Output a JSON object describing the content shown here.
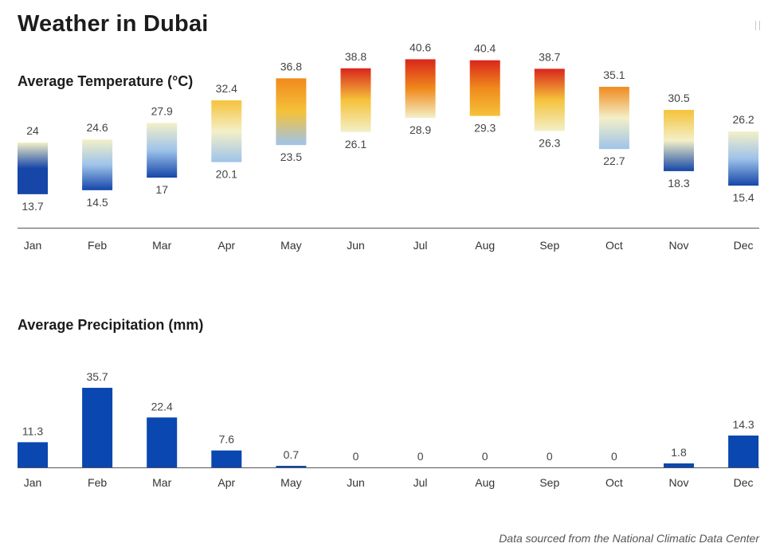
{
  "page": {
    "title": "Weather in Dubai",
    "source_note": "Data sourced from the National Climatic Data Center"
  },
  "chart_data": [
    {
      "type": "range-bar",
      "title": "Average Temperature (°C)",
      "categories": [
        "Jan",
        "Feb",
        "Mar",
        "Apr",
        "May",
        "Jun",
        "Jul",
        "Aug",
        "Sep",
        "Oct",
        "Nov",
        "Dec"
      ],
      "series": [
        {
          "name": "",
          "values": [
            24,
            24.6,
            27.9,
            32.4,
            36.8,
            38.8,
            40.6,
            40.4,
            38.7,
            35.1,
            30.5,
            26.2
          ]
        },
        {
          "name": "",
          "values": [
            13.7,
            14.5,
            17,
            20.1,
            23.5,
            26.1,
            28.9,
            29.3,
            26.3,
            22.7,
            18.3,
            15.4
          ]
        }
      ],
      "xlabel": "",
      "ylabel": "",
      "grid": false,
      "colors": {
        "cold": "#1546a8",
        "cool": "#9ec3ea",
        "mild": "#f3f0c8",
        "warm": "#f5c23a",
        "hot": "#f08a1c",
        "very_hot": "#d9261c"
      }
    },
    {
      "type": "bar",
      "title": "Average Precipitation (mm)",
      "categories": [
        "Jan",
        "Feb",
        "Mar",
        "Apr",
        "May",
        "Jun",
        "Jul",
        "Aug",
        "Sep",
        "Oct",
        "Nov",
        "Dec"
      ],
      "values": [
        11.3,
        35.7,
        22.4,
        7.6,
        0.7,
        0,
        0,
        0,
        0,
        0,
        1.8,
        14.3
      ],
      "xlabel": "",
      "ylabel": "",
      "grid": false,
      "colors": {
        "bar": "#0a47b0"
      }
    }
  ]
}
